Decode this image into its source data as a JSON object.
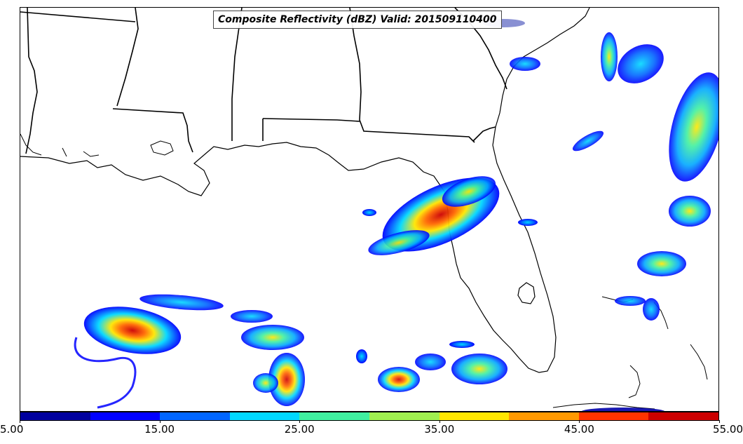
{
  "map": {
    "title": "Composite Reflectivity (dBZ) Valid: 201509110400",
    "variable": "Composite Reflectivity",
    "units": "dBZ",
    "valid_time": "201509110400",
    "region": "US Gulf Coast and Florida",
    "colorbar": {
      "min": 5.0,
      "max": 55.0,
      "orientation": "horizontal",
      "tick_labels": [
        "5.00",
        "15.00",
        "25.00",
        "35.00",
        "45.00",
        "55.00"
      ],
      "colors": [
        "#00009e",
        "#0000ff",
        "#0066ff",
        "#00d8ff",
        "#40f0a0",
        "#a0f050",
        "#ffe600",
        "#ff9900",
        "#ff3300",
        "#cc0000"
      ]
    },
    "layers": [
      "coastlines",
      "state-borders",
      "radar-echoes"
    ]
  }
}
